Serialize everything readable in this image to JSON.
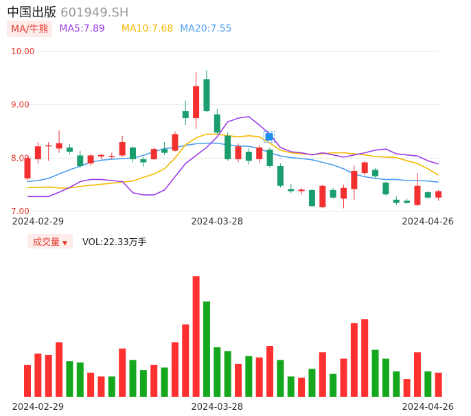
{
  "header": {
    "name": "中国出版",
    "code": "601949.SH"
  },
  "legend": {
    "tag": "MA/牛熊",
    "ma5": "MA5:7.89",
    "ma10": "MA10:7.68",
    "ma20": "MA20:7.55"
  },
  "volume_legend": {
    "tag": "成交量",
    "value": "VOL:22.33万手"
  },
  "colors": {
    "up": "#f23030",
    "down": "#1a9e6e",
    "vol_up": "#ff3030",
    "vol_down": "#15a81e",
    "ma5": "#9b3de8",
    "ma10": "#f5b800",
    "ma20": "#4a9ef0",
    "axis_label": "#e23a2e",
    "grid": "#e8e8e8"
  },
  "chart_data": {
    "type": "candlestick",
    "y_ticks": [
      "10.00",
      "9.00",
      "8.00",
      "7.00"
    ],
    "ylim": [
      7.0,
      10.0
    ],
    "x_ticks": [
      "2024-02-29",
      "2024-03-28",
      "2024-04-26"
    ],
    "x_tick_index": [
      1,
      18,
      38
    ],
    "candles": [
      {
        "o": 7.62,
        "c": 8.0,
        "h": 8.02,
        "l": 7.58
      },
      {
        "o": 7.98,
        "c": 8.22,
        "h": 8.3,
        "l": 7.9
      },
      {
        "o": 8.22,
        "c": 8.24,
        "h": 8.3,
        "l": 7.95
      },
      {
        "o": 8.18,
        "c": 8.28,
        "h": 8.52,
        "l": 8.1
      },
      {
        "o": 8.2,
        "c": 8.12,
        "h": 8.26,
        "l": 8.08
      },
      {
        "o": 8.05,
        "c": 7.85,
        "h": 8.14,
        "l": 7.82
      },
      {
        "o": 7.9,
        "c": 8.05,
        "h": 8.08,
        "l": 7.86
      },
      {
        "o": 8.03,
        "c": 8.06,
        "h": 8.08,
        "l": 7.98
      },
      {
        "o": 8.03,
        "c": 8.04,
        "h": 8.1,
        "l": 7.98
      },
      {
        "o": 8.05,
        "c": 8.3,
        "h": 8.42,
        "l": 8.02
      },
      {
        "o": 8.2,
        "c": 7.98,
        "h": 8.22,
        "l": 7.92
      },
      {
        "o": 7.98,
        "c": 7.92,
        "h": 8.02,
        "l": 7.84
      },
      {
        "o": 7.98,
        "c": 8.17,
        "h": 8.2,
        "l": 7.96
      },
      {
        "o": 8.17,
        "c": 8.1,
        "h": 8.3,
        "l": 8.06
      },
      {
        "o": 8.14,
        "c": 8.45,
        "h": 8.5,
        "l": 8.12
      },
      {
        "o": 8.88,
        "c": 8.75,
        "h": 9.08,
        "l": 8.62
      },
      {
        "o": 8.75,
        "c": 9.35,
        "h": 9.62,
        "l": 8.55
      },
      {
        "o": 9.48,
        "c": 8.88,
        "h": 9.65,
        "l": 8.86
      },
      {
        "o": 8.82,
        "c": 8.48,
        "h": 8.92,
        "l": 8.45
      },
      {
        "o": 8.42,
        "c": 7.98,
        "h": 8.48,
        "l": 7.95
      },
      {
        "o": 7.98,
        "c": 8.22,
        "h": 8.28,
        "l": 7.92
      },
      {
        "o": 8.12,
        "c": 7.95,
        "h": 8.18,
        "l": 7.88
      },
      {
        "o": 7.98,
        "c": 8.2,
        "h": 8.24,
        "l": 7.92
      },
      {
        "o": 8.16,
        "c": 7.85,
        "h": 8.2,
        "l": 7.82
      },
      {
        "o": 7.85,
        "c": 7.48,
        "h": 7.9,
        "l": 7.45
      },
      {
        "o": 7.42,
        "c": 7.38,
        "h": 7.52,
        "l": 7.34
      },
      {
        "o": 7.38,
        "c": 7.41,
        "h": 7.44,
        "l": 7.32
      },
      {
        "o": 7.4,
        "c": 7.1,
        "h": 7.42,
        "l": 7.08
      },
      {
        "o": 7.08,
        "c": 7.48,
        "h": 7.5,
        "l": 7.06
      },
      {
        "o": 7.4,
        "c": 7.26,
        "h": 7.44,
        "l": 7.24
      },
      {
        "o": 7.24,
        "c": 7.44,
        "h": 7.5,
        "l": 7.06
      },
      {
        "o": 7.42,
        "c": 7.76,
        "h": 7.86,
        "l": 7.22
      },
      {
        "o": 7.72,
        "c": 7.92,
        "h": 7.94,
        "l": 7.68
      },
      {
        "o": 7.78,
        "c": 7.66,
        "h": 7.82,
        "l": 7.62
      },
      {
        "o": 7.54,
        "c": 7.32,
        "h": 7.56,
        "l": 7.3
      },
      {
        "o": 7.22,
        "c": 7.16,
        "h": 7.28,
        "l": 7.12
      },
      {
        "o": 7.2,
        "c": 7.16,
        "h": 7.24,
        "l": 7.14
      },
      {
        "o": 7.12,
        "c": 7.48,
        "h": 7.72,
        "l": 7.1
      },
      {
        "o": 7.36,
        "c": 7.26,
        "h": 7.38,
        "l": 7.24
      },
      {
        "o": 7.26,
        "c": 7.38,
        "h": 7.4,
        "l": 7.2
      }
    ],
    "ma5": [
      7.28,
      7.28,
      7.28,
      7.36,
      7.45,
      7.56,
      7.6,
      7.6,
      7.58,
      7.56,
      7.35,
      7.31,
      7.31,
      7.4,
      7.65,
      7.9,
      8.05,
      8.2,
      8.4,
      8.68,
      8.75,
      8.78,
      8.62,
      8.45,
      8.2,
      8.12,
      8.1,
      8.06,
      8.1,
      8.06,
      8.02,
      8.06,
      8.1,
      8.15,
      8.17,
      8.08,
      8.06,
      8.04,
      7.95,
      7.89
    ],
    "ma10": [
      7.45,
      7.45,
      7.46,
      7.44,
      7.44,
      7.47,
      7.49,
      7.51,
      7.53,
      7.55,
      7.57,
      7.64,
      7.7,
      7.8,
      8.0,
      8.25,
      8.38,
      8.45,
      8.45,
      8.42,
      8.4,
      8.42,
      8.4,
      8.28,
      8.15,
      8.1,
      8.08,
      8.07,
      8.08,
      8.1,
      8.1,
      8.08,
      8.06,
      8.03,
      8.02,
      8.01,
      7.95,
      7.9,
      7.8,
      7.68
    ],
    "ma20": [
      7.56,
      7.58,
      7.62,
      7.7,
      7.78,
      7.85,
      7.92,
      7.96,
      7.98,
      7.99,
      8.0,
      8.05,
      8.12,
      8.18,
      8.2,
      8.24,
      8.27,
      8.28,
      8.28,
      8.25,
      8.23,
      8.22,
      8.18,
      8.1,
      8.04,
      8.01,
      7.99,
      7.97,
      7.92,
      7.87,
      7.8,
      7.7,
      7.65,
      7.62,
      7.6,
      7.6,
      7.58,
      7.58,
      7.57,
      7.55
    ]
  },
  "volume_data": {
    "type": "bar",
    "values": [
      25,
      34,
      33,
      43,
      28,
      27,
      19,
      16,
      16,
      38,
      29,
      21,
      25,
      23,
      43,
      57,
      95,
      75,
      39,
      36,
      26,
      32,
      31,
      40,
      29,
      16,
      15,
      22,
      35,
      18,
      30,
      58,
      61,
      37,
      30,
      20,
      14,
      35,
      20,
      19
    ],
    "up": [
      true,
      true,
      true,
      true,
      false,
      false,
      true,
      true,
      false,
      true,
      false,
      false,
      true,
      false,
      true,
      true,
      true,
      false,
      false,
      false,
      true,
      false,
      true,
      true,
      false,
      false,
      true,
      false,
      true,
      false,
      true,
      true,
      true,
      false,
      false,
      false,
      true,
      true,
      false,
      true
    ],
    "ylim": [
      0,
      100
    ]
  }
}
